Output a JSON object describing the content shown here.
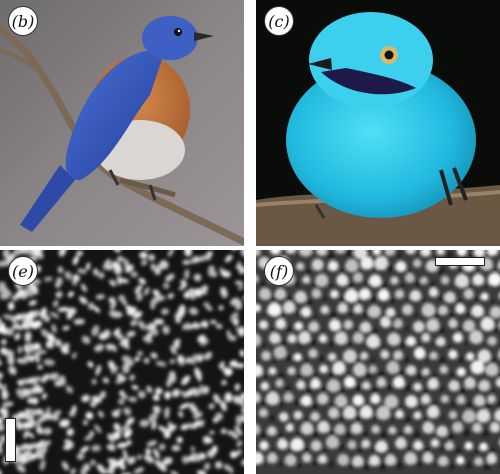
{
  "panels": [
    {
      "label": "(b)",
      "subject": "eastern-bluebird-photo"
    },
    {
      "label": "(c)",
      "subject": "turquoise-cotinga-photo"
    },
    {
      "label": "(e)",
      "subject": "channel-type-nanostructure-micrograph"
    },
    {
      "label": "(f)",
      "subject": "sphere-type-nanostructure-micrograph"
    }
  ],
  "colors": {
    "bluebird_back": "#3a5cc0",
    "bluebird_breast": "#c9793f",
    "cotinga_plumage": "#2cc6e6",
    "branch": "#8a7560",
    "micrograph_dark": "#151515",
    "micrograph_light": "#e8e8e8"
  }
}
